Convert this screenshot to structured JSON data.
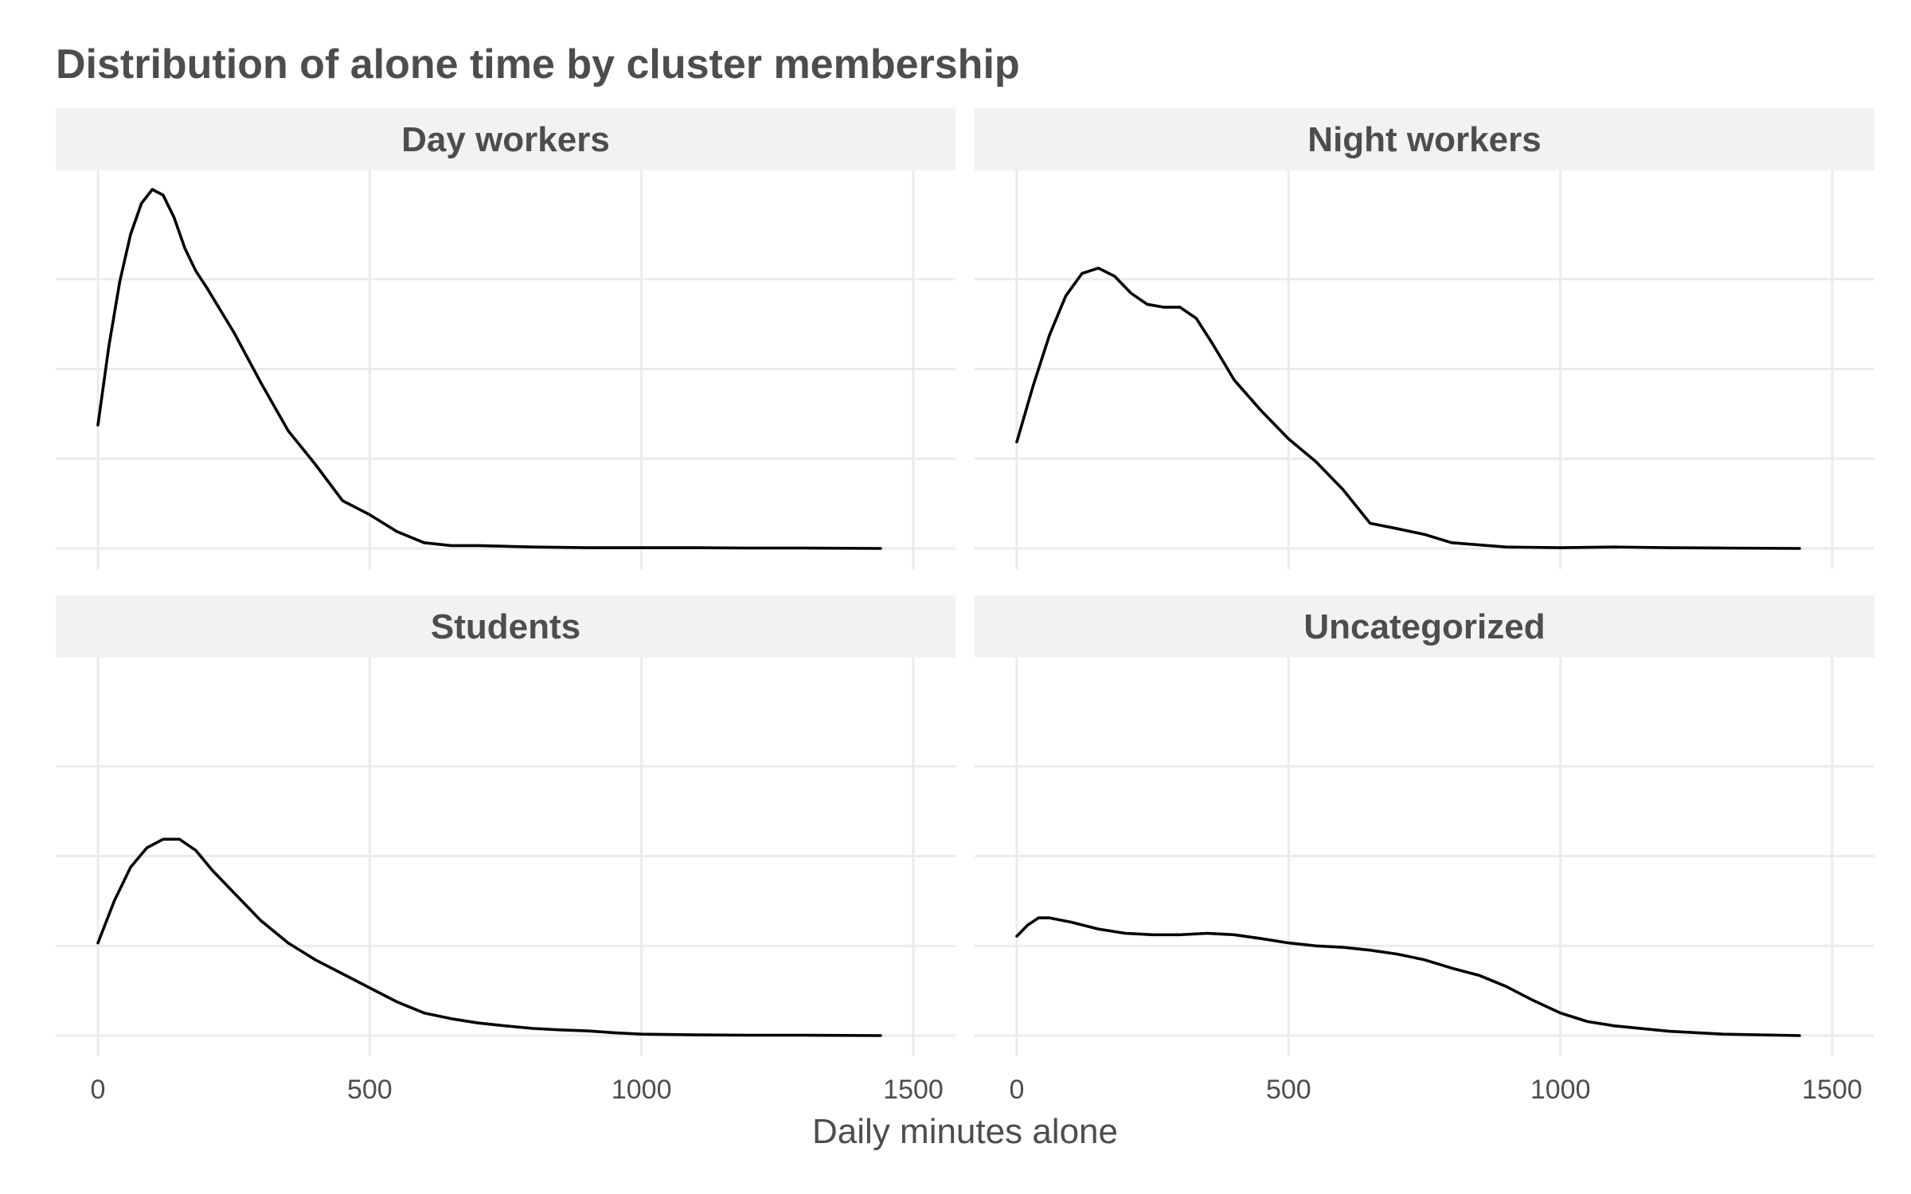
{
  "chart_data": {
    "type": "line",
    "title": "Distribution of alone time by cluster membership",
    "xlabel": "Daily minutes alone",
    "ylabel": "",
    "xlim": [
      0,
      1500
    ],
    "xticks": [
      0,
      500,
      1000,
      1500
    ],
    "ylim": [
      0,
      1
    ],
    "grid": true,
    "legend": "none",
    "facets": [
      {
        "name": "Day workers",
        "x": [
          0,
          20,
          40,
          60,
          80,
          100,
          120,
          140,
          160,
          180,
          200,
          250,
          300,
          350,
          400,
          450,
          500,
          550,
          600,
          650,
          700,
          800,
          900,
          1000,
          1100,
          1200,
          1300,
          1440
        ],
        "y": [
          0.344,
          0.563,
          0.742,
          0.875,
          0.961,
          1.0,
          0.984,
          0.922,
          0.836,
          0.773,
          0.727,
          0.602,
          0.461,
          0.328,
          0.234,
          0.133,
          0.094,
          0.047,
          0.016,
          0.008,
          0.008,
          0.004,
          0.002,
          0.002,
          0.002,
          0.001,
          0.001,
          0.0
        ]
      },
      {
        "name": "Night workers",
        "x": [
          0,
          30,
          60,
          90,
          120,
          150,
          180,
          210,
          240,
          270,
          300,
          330,
          360,
          400,
          450,
          500,
          550,
          600,
          650,
          700,
          750,
          800,
          900,
          1000,
          1100,
          1200,
          1300,
          1440
        ],
        "y": [
          0.297,
          0.453,
          0.594,
          0.703,
          0.766,
          0.781,
          0.758,
          0.711,
          0.68,
          0.672,
          0.672,
          0.641,
          0.57,
          0.469,
          0.383,
          0.305,
          0.242,
          0.164,
          0.07,
          0.055,
          0.039,
          0.016,
          0.004,
          0.002,
          0.004,
          0.002,
          0.001,
          0.0
        ]
      },
      {
        "name": "Students",
        "x": [
          0,
          30,
          60,
          90,
          120,
          150,
          180,
          210,
          250,
          300,
          350,
          400,
          450,
          500,
          550,
          600,
          650,
          700,
          750,
          800,
          850,
          900,
          950,
          1000,
          1100,
          1200,
          1300,
          1440
        ],
        "y": [
          0.258,
          0.375,
          0.469,
          0.523,
          0.547,
          0.547,
          0.516,
          0.461,
          0.398,
          0.32,
          0.258,
          0.211,
          0.172,
          0.133,
          0.094,
          0.063,
          0.047,
          0.035,
          0.027,
          0.02,
          0.016,
          0.013,
          0.008,
          0.004,
          0.002,
          0.001,
          0.001,
          0.0
        ]
      },
      {
        "name": "Uncategorized",
        "x": [
          0,
          20,
          40,
          60,
          100,
          150,
          200,
          250,
          300,
          350,
          400,
          450,
          500,
          550,
          600,
          650,
          700,
          750,
          800,
          850,
          900,
          950,
          1000,
          1050,
          1100,
          1200,
          1300,
          1440
        ],
        "y": [
          0.277,
          0.308,
          0.328,
          0.328,
          0.316,
          0.297,
          0.285,
          0.281,
          0.281,
          0.285,
          0.281,
          0.27,
          0.258,
          0.25,
          0.246,
          0.238,
          0.227,
          0.211,
          0.188,
          0.168,
          0.137,
          0.098,
          0.063,
          0.039,
          0.027,
          0.012,
          0.004,
          0.0
        ]
      }
    ]
  }
}
